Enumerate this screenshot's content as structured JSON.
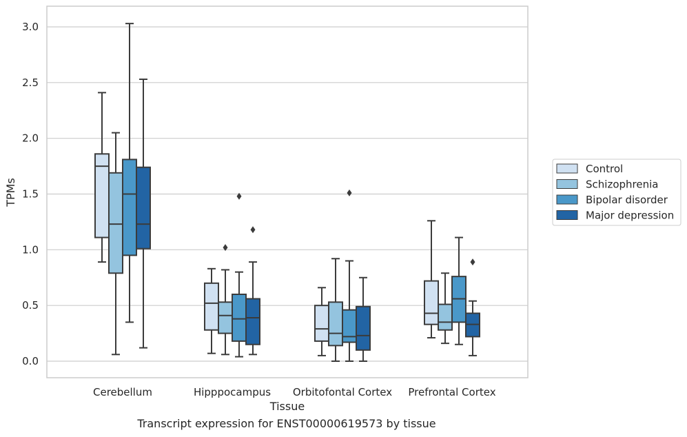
{
  "caption": "Transcript expression for ENST00000619573 by tissue",
  "chart_data": {
    "type": "boxplot",
    "xlabel": "Tissue",
    "ylabel": "TPMs",
    "ylim": [
      -0.15,
      3.2
    ],
    "yticks": [
      "0.0",
      "0.5",
      "1.0",
      "1.5",
      "2.0",
      "2.5",
      "3.0"
    ],
    "grid": true,
    "legend_position": "right",
    "categories": [
      "Cerebellum",
      "Hipppocampus",
      "Orbitofontal Cortex",
      "Prefrontal Cortex"
    ],
    "series": [
      {
        "name": "Control",
        "color": "#d0e1f2",
        "boxes": [
          {
            "min": 0.89,
            "q1": 1.11,
            "median": 1.75,
            "q3": 1.86,
            "max": 2.41,
            "outliers": []
          },
          {
            "min": 0.07,
            "q1": 0.28,
            "median": 0.52,
            "q3": 0.7,
            "max": 0.83,
            "outliers": []
          },
          {
            "min": 0.05,
            "q1": 0.18,
            "median": 0.29,
            "q3": 0.5,
            "max": 0.66,
            "outliers": []
          },
          {
            "min": 0.21,
            "q1": 0.33,
            "median": 0.43,
            "q3": 0.72,
            "max": 1.26,
            "outliers": []
          }
        ]
      },
      {
        "name": "Schizophrenia",
        "color": "#94c4df",
        "boxes": [
          {
            "min": 0.06,
            "q1": 0.79,
            "median": 1.23,
            "q3": 1.69,
            "max": 2.05,
            "outliers": []
          },
          {
            "min": 0.06,
            "q1": 0.25,
            "median": 0.41,
            "q3": 0.53,
            "max": 0.82,
            "outliers": [
              1.02
            ]
          },
          {
            "min": 0.0,
            "q1": 0.14,
            "median": 0.25,
            "q3": 0.53,
            "max": 0.92,
            "outliers": []
          },
          {
            "min": 0.16,
            "q1": 0.28,
            "median": 0.35,
            "q3": 0.51,
            "max": 0.79,
            "outliers": []
          }
        ]
      },
      {
        "name": "Bipolar disorder",
        "color": "#4a98c9",
        "boxes": [
          {
            "min": 0.35,
            "q1": 0.95,
            "median": 1.5,
            "q3": 1.81,
            "max": 3.03,
            "outliers": []
          },
          {
            "min": 0.04,
            "q1": 0.18,
            "median": 0.38,
            "q3": 0.6,
            "max": 0.8,
            "outliers": [
              1.48
            ]
          },
          {
            "min": 0.0,
            "q1": 0.17,
            "median": 0.22,
            "q3": 0.46,
            "max": 0.9,
            "outliers": [
              1.51
            ]
          },
          {
            "min": 0.15,
            "q1": 0.35,
            "median": 0.56,
            "q3": 0.76,
            "max": 1.11,
            "outliers": []
          }
        ]
      },
      {
        "name": "Major depression",
        "color": "#2264a4",
        "boxes": [
          {
            "min": 0.12,
            "q1": 1.01,
            "median": 1.23,
            "q3": 1.74,
            "max": 2.53,
            "outliers": []
          },
          {
            "min": 0.06,
            "q1": 0.15,
            "median": 0.39,
            "q3": 0.56,
            "max": 0.89,
            "outliers": [
              1.18
            ]
          },
          {
            "min": 0.0,
            "q1": 0.1,
            "median": 0.23,
            "q3": 0.49,
            "max": 0.75,
            "outliers": []
          },
          {
            "min": 0.05,
            "q1": 0.22,
            "median": 0.33,
            "q3": 0.43,
            "max": 0.54,
            "outliers": [
              0.89
            ]
          }
        ]
      }
    ]
  }
}
